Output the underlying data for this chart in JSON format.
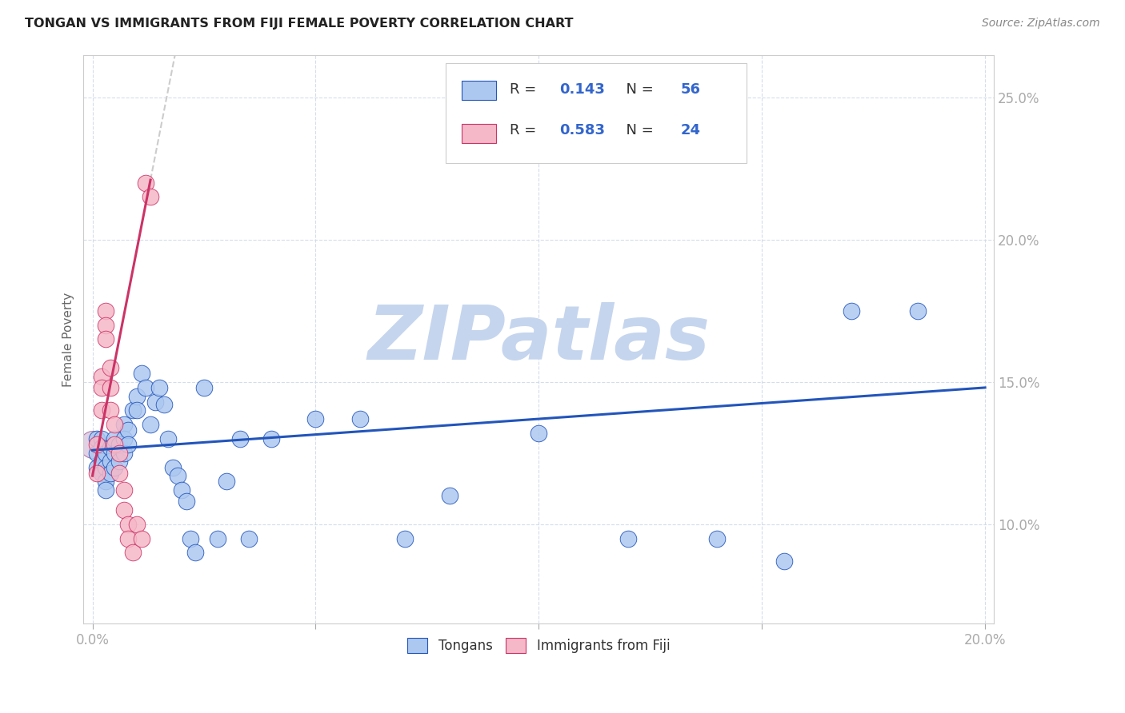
{
  "title": "TONGAN VS IMMIGRANTS FROM FIJI FEMALE POVERTY CORRELATION CHART",
  "source": "Source: ZipAtlas.com",
  "ylabel": "Female Poverty",
  "blue_R": "0.143",
  "blue_N": "56",
  "pink_R": "0.583",
  "pink_N": "24",
  "blue_color": "#adc8f0",
  "pink_color": "#f5b8c8",
  "blue_line_color": "#2255bb",
  "pink_line_color": "#cc3366",
  "watermark": "ZIPatlas",
  "watermark_color": "#c5d5ee",
  "legend1_label": "Tongans",
  "legend2_label": "Immigrants from Fiji",
  "blue_x": [
    0.001,
    0.001,
    0.001,
    0.002,
    0.002,
    0.002,
    0.002,
    0.003,
    0.003,
    0.003,
    0.003,
    0.004,
    0.004,
    0.004,
    0.005,
    0.005,
    0.005,
    0.006,
    0.006,
    0.007,
    0.007,
    0.007,
    0.008,
    0.008,
    0.009,
    0.01,
    0.01,
    0.011,
    0.012,
    0.013,
    0.014,
    0.015,
    0.016,
    0.017,
    0.018,
    0.019,
    0.02,
    0.021,
    0.022,
    0.023,
    0.025,
    0.028,
    0.03,
    0.033,
    0.035,
    0.04,
    0.05,
    0.06,
    0.07,
    0.08,
    0.1,
    0.12,
    0.14,
    0.155,
    0.17,
    0.185
  ],
  "blue_y": [
    0.13,
    0.125,
    0.12,
    0.13,
    0.127,
    0.122,
    0.118,
    0.125,
    0.12,
    0.115,
    0.112,
    0.127,
    0.122,
    0.118,
    0.13,
    0.125,
    0.12,
    0.128,
    0.122,
    0.135,
    0.13,
    0.125,
    0.133,
    0.128,
    0.14,
    0.145,
    0.14,
    0.153,
    0.148,
    0.135,
    0.143,
    0.148,
    0.142,
    0.13,
    0.12,
    0.117,
    0.112,
    0.108,
    0.095,
    0.09,
    0.148,
    0.095,
    0.115,
    0.13,
    0.095,
    0.13,
    0.137,
    0.137,
    0.095,
    0.11,
    0.132,
    0.095,
    0.095,
    0.087,
    0.175,
    0.175
  ],
  "pink_x": [
    0.001,
    0.001,
    0.002,
    0.002,
    0.002,
    0.003,
    0.003,
    0.003,
    0.004,
    0.004,
    0.004,
    0.005,
    0.005,
    0.006,
    0.006,
    0.007,
    0.007,
    0.008,
    0.008,
    0.009,
    0.01,
    0.011,
    0.012,
    0.013
  ],
  "pink_y": [
    0.128,
    0.118,
    0.152,
    0.148,
    0.14,
    0.175,
    0.17,
    0.165,
    0.155,
    0.148,
    0.14,
    0.135,
    0.128,
    0.125,
    0.118,
    0.112,
    0.105,
    0.1,
    0.095,
    0.09,
    0.1,
    0.095,
    0.22,
    0.215
  ],
  "xlim": [
    0.0,
    0.2
  ],
  "ylim": [
    0.065,
    0.265
  ],
  "x_ticks": [
    0.0,
    0.2
  ],
  "x_tick_labels": [
    "0.0%",
    "20.0%"
  ],
  "y_ticks": [
    0.1,
    0.15,
    0.2,
    0.25
  ],
  "y_tick_labels": [
    "10.0%",
    "15.0%",
    "20.0%",
    "25.0%"
  ]
}
